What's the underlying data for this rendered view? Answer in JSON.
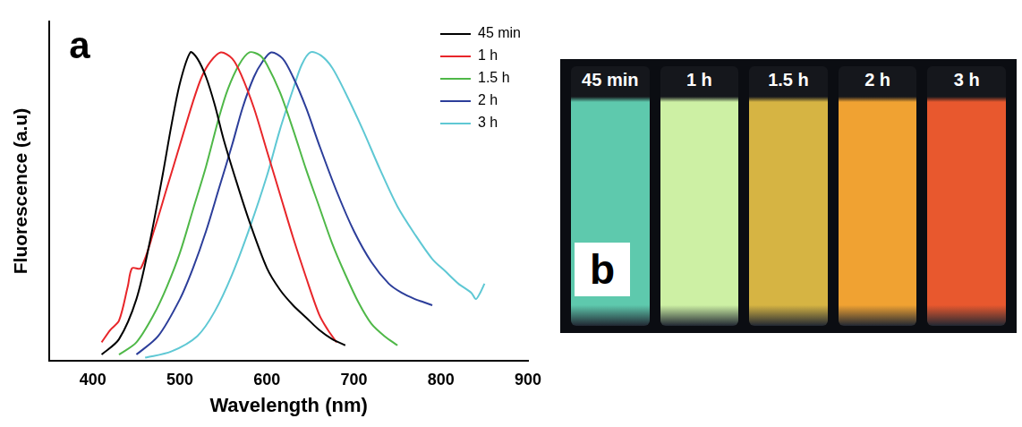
{
  "chart_data": {
    "type": "line",
    "panel_label": "a",
    "x_label": "Wavelength (nm)",
    "y_label": "Fluorescence (a.u)",
    "xlim": [
      350,
      900
    ],
    "xticks": [
      400,
      500,
      600,
      700,
      800,
      900
    ],
    "ylim": [
      0,
      1.1
    ],
    "tick_labels": "x",
    "grid": false,
    "legend": "upper right",
    "series": [
      {
        "name": "45 min",
        "color": "#000000",
        "x": [
          410,
          430,
          450,
          465,
          480,
          490,
          500,
          512,
          520,
          530,
          540,
          550,
          565,
          580,
          600,
          615,
          630,
          645,
          660,
          675,
          690
        ],
        "values": [
          0.02,
          0.07,
          0.2,
          0.38,
          0.6,
          0.76,
          0.9,
          1.0,
          0.98,
          0.92,
          0.83,
          0.72,
          0.58,
          0.45,
          0.3,
          0.23,
          0.18,
          0.14,
          0.1,
          0.07,
          0.05
        ]
      },
      {
        "name": "1 h",
        "color": "#e8262a",
        "x": [
          410,
          420,
          430,
          440,
          445,
          455,
          470,
          485,
          500,
          515,
          525,
          535,
          547,
          560,
          570,
          585,
          600,
          615,
          630,
          645,
          660,
          670,
          680
        ],
        "values": [
          0.06,
          0.1,
          0.13,
          0.24,
          0.3,
          0.3,
          0.42,
          0.56,
          0.7,
          0.84,
          0.92,
          0.97,
          1.0,
          0.98,
          0.93,
          0.82,
          0.68,
          0.54,
          0.4,
          0.27,
          0.15,
          0.1,
          0.06
        ]
      },
      {
        "name": "1.5 h",
        "color": "#4fb848",
        "x": [
          430,
          450,
          470,
          485,
          500,
          515,
          530,
          545,
          555,
          568,
          580,
          592,
          600,
          615,
          630,
          645,
          660,
          675,
          690,
          705,
          720,
          735,
          750
        ],
        "values": [
          0.02,
          0.06,
          0.15,
          0.24,
          0.35,
          0.49,
          0.63,
          0.79,
          0.88,
          0.96,
          1.0,
          0.99,
          0.96,
          0.87,
          0.75,
          0.62,
          0.5,
          0.38,
          0.28,
          0.19,
          0.12,
          0.08,
          0.05
        ]
      },
      {
        "name": "2 h",
        "color": "#2c3e9a",
        "x": [
          450,
          475,
          500,
          515,
          530,
          545,
          560,
          572,
          585,
          595,
          605,
          618,
          630,
          645,
          660,
          680,
          700,
          720,
          740,
          755,
          770,
          780,
          790
        ],
        "values": [
          0.02,
          0.08,
          0.2,
          0.3,
          0.42,
          0.56,
          0.7,
          0.82,
          0.92,
          0.97,
          1.0,
          0.98,
          0.92,
          0.82,
          0.7,
          0.55,
          0.42,
          0.32,
          0.25,
          0.22,
          0.2,
          0.19,
          0.18
        ]
      },
      {
        "name": "3 h",
        "color": "#5fc8d4",
        "x": [
          460,
          490,
          520,
          540,
          560,
          580,
          600,
          615,
          630,
          640,
          650,
          662,
          675,
          690,
          710,
          730,
          750,
          770,
          790,
          805,
          820,
          835,
          840,
          845,
          850
        ],
        "values": [
          0.01,
          0.03,
          0.08,
          0.16,
          0.28,
          0.43,
          0.6,
          0.75,
          0.88,
          0.96,
          1.0,
          0.99,
          0.95,
          0.87,
          0.75,
          0.62,
          0.5,
          0.41,
          0.33,
          0.29,
          0.25,
          0.22,
          0.2,
          0.22,
          0.25
        ]
      }
    ]
  },
  "photo": {
    "panel_label": "b",
    "vials": [
      {
        "label": "45 min",
        "color": "#5ec9ad"
      },
      {
        "label": "1 h",
        "color": "#cdf0a4"
      },
      {
        "label": "1.5 h",
        "color": "#d6b443"
      },
      {
        "label": "2 h",
        "color": "#f0a232"
      },
      {
        "label": "3 h",
        "color": "#e8582e"
      }
    ]
  }
}
